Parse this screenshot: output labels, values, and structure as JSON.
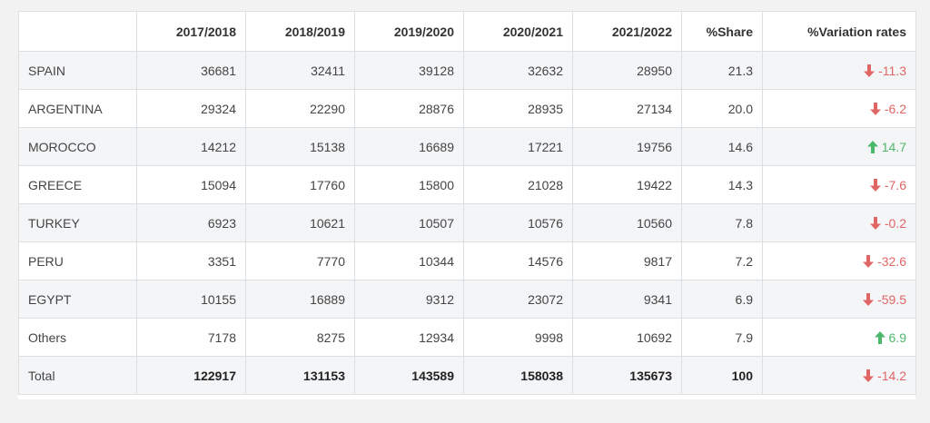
{
  "columns": [
    "",
    "2017/2018",
    "2018/2019",
    "2019/2020",
    "2020/2021",
    "2021/2022",
    "%Share",
    "%Variation rates"
  ],
  "rows": [
    {
      "country": "SPAIN",
      "values": [
        "36681",
        "32411",
        "39128",
        "32632",
        "28950"
      ],
      "share": "21.3",
      "variation": "-11.3",
      "trend": "down"
    },
    {
      "country": "ARGENTINA",
      "values": [
        "29324",
        "22290",
        "28876",
        "28935",
        "27134"
      ],
      "share": "20.0",
      "variation": "-6.2",
      "trend": "down"
    },
    {
      "country": "MOROCCO",
      "values": [
        "14212",
        "15138",
        "16689",
        "17221",
        "19756"
      ],
      "share": "14.6",
      "variation": "14.7",
      "trend": "up"
    },
    {
      "country": "GREECE",
      "values": [
        "15094",
        "17760",
        "15800",
        "21028",
        "19422"
      ],
      "share": "14.3",
      "variation": "-7.6",
      "trend": "down"
    },
    {
      "country": "TURKEY",
      "values": [
        "6923",
        "10621",
        "10507",
        "10576",
        "10560"
      ],
      "share": "7.8",
      "variation": "-0.2",
      "trend": "down"
    },
    {
      "country": "PERU",
      "values": [
        "3351",
        "7770",
        "10344",
        "14576",
        "9817"
      ],
      "share": "7.2",
      "variation": "-32.6",
      "trend": "down"
    },
    {
      "country": "EGYPT",
      "values": [
        "10155",
        "16889",
        "9312",
        "23072",
        "9341"
      ],
      "share": "6.9",
      "variation": "-59.5",
      "trend": "down"
    },
    {
      "country": "Others",
      "values": [
        "7178",
        "8275",
        "12934",
        "9998",
        "10692"
      ],
      "share": "7.9",
      "variation": "6.9",
      "trend": "up"
    }
  ],
  "total": {
    "country": "Total",
    "values": [
      "122917",
      "131153",
      "143589",
      "158038",
      "135673"
    ],
    "share": "100",
    "variation": "-14.2",
    "trend": "down"
  },
  "colors": {
    "negative": "#e06565",
    "positive": "#4cb86b",
    "stripe": "#f4f5f7",
    "border": "#dde0e3"
  },
  "icons": {
    "down": "arrow-down-icon",
    "up": "arrow-up-icon"
  }
}
